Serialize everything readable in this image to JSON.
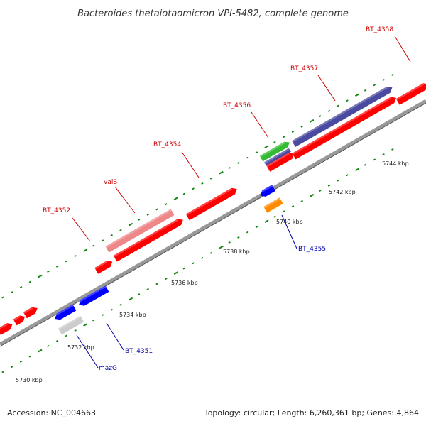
{
  "title": "Bacteroides thetaiotaomicron VPI-5482, complete genome",
  "footer": {
    "accession": "Accession: NC_004663",
    "topology": "Topology: circular; Length: 6,260,361 bp; Genes: 4,864"
  },
  "colors": {
    "backbone": "#999999",
    "tick": "#118811",
    "forward_gene": "#ff0000",
    "reverse_gene": "#0000ff",
    "top_label": "#cc0000",
    "bottom_label": "#0000aa",
    "trna": "#ee8888",
    "pseudo": "#cccccc",
    "rna": "#ff8c00",
    "purple": "#4a4aa0",
    "green": "#33bb33"
  },
  "tick_labels": [
    {
      "label": "5730 kbp"
    },
    {
      "label": "5732 kbp"
    },
    {
      "label": "5734 kbp"
    },
    {
      "label": "5736 kbp"
    },
    {
      "label": "5738 kbp"
    },
    {
      "label": "5740 kbp"
    },
    {
      "label": "5742 kbp"
    },
    {
      "label": "5744 kbp"
    }
  ],
  "top_labels": [
    {
      "name": "BT_4352"
    },
    {
      "name": "valS"
    },
    {
      "name": "BT_4354"
    },
    {
      "name": "BT_4356"
    },
    {
      "name": "BT_4357"
    },
    {
      "name": "BT_4358"
    }
  ],
  "bottom_labels": [
    {
      "name": "BT_4355"
    },
    {
      "name": "BT_4351"
    },
    {
      "name": "mazG"
    }
  ]
}
